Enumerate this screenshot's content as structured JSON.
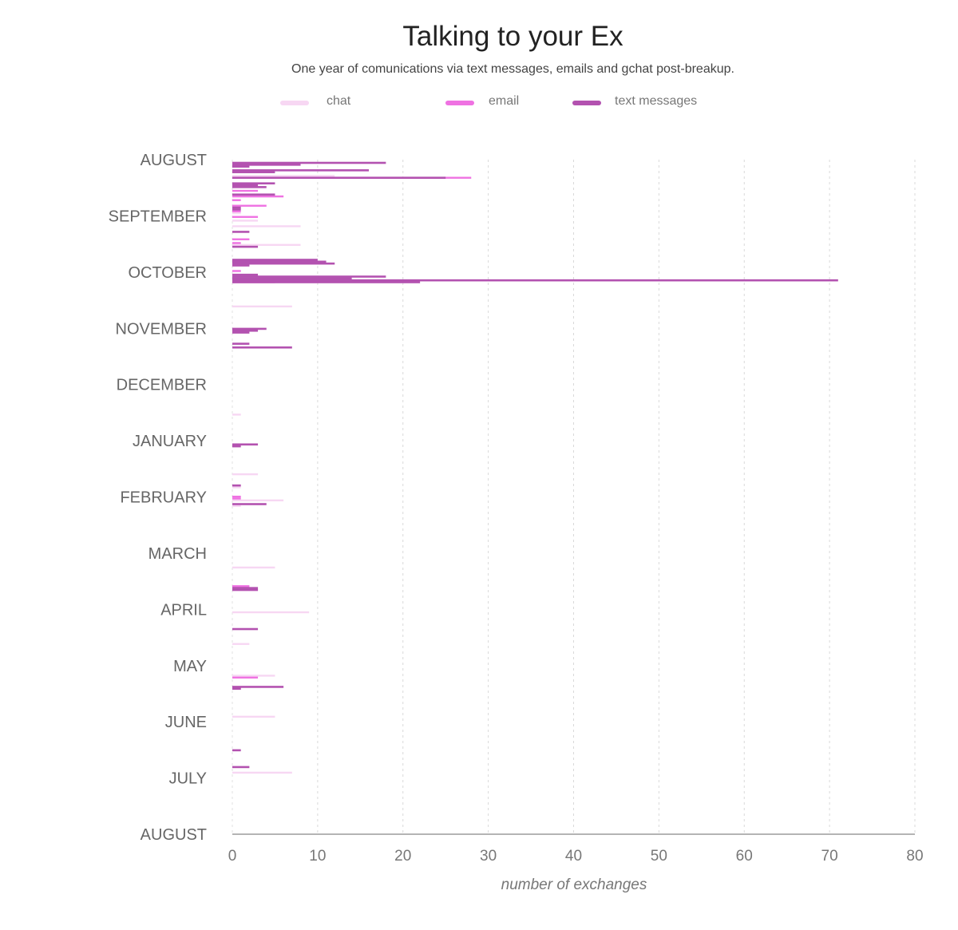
{
  "title": "Talking to your Ex",
  "subtitle": "One year of comunications via text messages, emails and gchat post-breakup.",
  "legend": [
    {
      "label": "chat",
      "color": "#f7d7f3"
    },
    {
      "label": "email",
      "color": "#ef72e2"
    },
    {
      "label": "text messages",
      "color": "#b352b0"
    }
  ],
  "chart_data": {
    "type": "bar",
    "orientation": "horizontal",
    "title": "Talking to your Ex",
    "subtitle": "One year of comunications via text messages, emails and gchat post-breakup.",
    "xlabel": "number of exchanges",
    "ylabel": "",
    "xlim": [
      0,
      80
    ],
    "xticks": [
      0,
      10,
      20,
      30,
      40,
      50,
      60,
      70,
      80
    ],
    "y_months": [
      "AUGUST",
      "SEPTEMBER",
      "OCTOBER",
      "NOVEMBER",
      "DECEMBER",
      "JANUARY",
      "FEBRUARY",
      "MARCH",
      "APRIL",
      "MAY",
      "JUNE",
      "JULY",
      "AUGUST"
    ],
    "ylim_days": [
      0,
      360
    ],
    "grid": "vertical-dashed",
    "legend_position": "top",
    "series": [
      {
        "name": "chat",
        "color": "#f7d7f3",
        "points": [
          {
            "day": 1,
            "value": 4
          },
          {
            "day": 2,
            "value": 1
          },
          {
            "day": 7,
            "value": 12
          },
          {
            "day": 8,
            "value": 14
          },
          {
            "day": 18,
            "value": 6
          },
          {
            "day": 23,
            "value": 4
          },
          {
            "day": 27,
            "value": 1
          },
          {
            "day": 31,
            "value": 3
          },
          {
            "day": 34,
            "value": 8
          },
          {
            "day": 41,
            "value": 2
          },
          {
            "day": 44,
            "value": 8
          },
          {
            "day": 52,
            "value": 4
          },
          {
            "day": 53,
            "value": 10
          },
          {
            "day": 58,
            "value": 1
          },
          {
            "day": 64,
            "value": 10
          },
          {
            "day": 77,
            "value": 7
          },
          {
            "day": 135,
            "value": 1
          },
          {
            "day": 167,
            "value": 3
          },
          {
            "day": 174,
            "value": 1
          },
          {
            "day": 181,
            "value": 6
          },
          {
            "day": 184,
            "value": 1
          },
          {
            "day": 217,
            "value": 5
          },
          {
            "day": 227,
            "value": 2
          },
          {
            "day": 241,
            "value": 9
          },
          {
            "day": 258,
            "value": 2
          },
          {
            "day": 275,
            "value": 5
          },
          {
            "day": 297,
            "value": 5
          },
          {
            "day": 327,
            "value": 7
          }
        ]
      },
      {
        "name": "email",
        "color": "#ef72e2",
        "points": [
          {
            "day": 1,
            "value": 8
          },
          {
            "day": 4,
            "value": 1
          },
          {
            "day": 8,
            "value": 28
          },
          {
            "day": 12,
            "value": 3
          },
          {
            "day": 15,
            "value": 3
          },
          {
            "day": 17,
            "value": 5
          },
          {
            "day": 18,
            "value": 6
          },
          {
            "day": 20,
            "value": 1
          },
          {
            "day": 23,
            "value": 4
          },
          {
            "day": 26,
            "value": 1
          },
          {
            "day": 29,
            "value": 3
          },
          {
            "day": 41,
            "value": 2
          },
          {
            "day": 43,
            "value": 1
          },
          {
            "day": 55,
            "value": 2
          },
          {
            "day": 58,
            "value": 1
          },
          {
            "day": 63,
            "value": 13
          },
          {
            "day": 64,
            "value": 5
          },
          {
            "day": 179,
            "value": 1
          },
          {
            "day": 180,
            "value": 1
          },
          {
            "day": 227,
            "value": 2
          },
          {
            "day": 229,
            "value": 3
          },
          {
            "day": 276,
            "value": 3
          },
          {
            "day": 282,
            "value": 1
          }
        ]
      },
      {
        "name": "text messages",
        "color": "#b352b0",
        "points": [
          {
            "day": 0,
            "value": 18
          },
          {
            "day": 1,
            "value": 8
          },
          {
            "day": 2,
            "value": 2
          },
          {
            "day": 4,
            "value": 16
          },
          {
            "day": 5,
            "value": 5
          },
          {
            "day": 8,
            "value": 25
          },
          {
            "day": 11,
            "value": 5
          },
          {
            "day": 12,
            "value": 3
          },
          {
            "day": 13,
            "value": 4
          },
          {
            "day": 17,
            "value": 5
          },
          {
            "day": 24,
            "value": 1
          },
          {
            "day": 25,
            "value": 1
          },
          {
            "day": 37,
            "value": 2
          },
          {
            "day": 45,
            "value": 3
          },
          {
            "day": 52,
            "value": 10
          },
          {
            "day": 53,
            "value": 11
          },
          {
            "day": 54,
            "value": 12
          },
          {
            "day": 55,
            "value": 2
          },
          {
            "day": 60,
            "value": 3
          },
          {
            "day": 61,
            "value": 18
          },
          {
            "day": 62,
            "value": 14
          },
          {
            "day": 63,
            "value": 71
          },
          {
            "day": 64,
            "value": 22
          },
          {
            "day": 89,
            "value": 4
          },
          {
            "day": 90,
            "value": 3
          },
          {
            "day": 91,
            "value": 2
          },
          {
            "day": 97,
            "value": 2
          },
          {
            "day": 99,
            "value": 7
          },
          {
            "day": 151,
            "value": 3
          },
          {
            "day": 152,
            "value": 1
          },
          {
            "day": 173,
            "value": 1
          },
          {
            "day": 183,
            "value": 4
          },
          {
            "day": 228,
            "value": 3
          },
          {
            "day": 229,
            "value": 3
          },
          {
            "day": 250,
            "value": 3
          },
          {
            "day": 281,
            "value": 6
          },
          {
            "day": 282,
            "value": 1
          },
          {
            "day": 315,
            "value": 1
          },
          {
            "day": 324,
            "value": 2
          }
        ]
      }
    ]
  }
}
